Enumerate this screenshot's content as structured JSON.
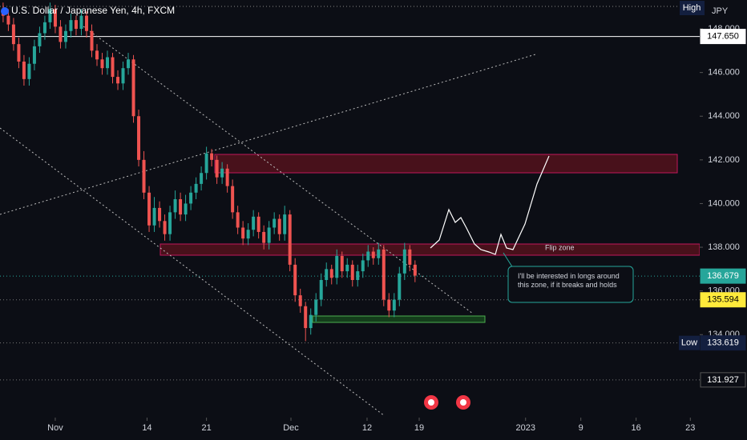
{
  "chart_data": {
    "type": "candlestick",
    "title": "U.S. Dollar / Japanese Yen, 4h, FXCM",
    "currency": "JPY",
    "high_badge": "High",
    "up_color": "#26a69a",
    "down_color": "#ef5350",
    "x": [
      -5,
      -4.5,
      -4,
      -3.5,
      -3,
      -2.5,
      -2,
      -1.5,
      -1,
      -0.5,
      0,
      0.5,
      1,
      1.5,
      2,
      2.5,
      3,
      3.5,
      4,
      4.5,
      5,
      5.5,
      6,
      6.5,
      7,
      7.5,
      8,
      8.5,
      9,
      9.5,
      10,
      10.5,
      11,
      11.5,
      12,
      12.5,
      13,
      13.5,
      14,
      14.5,
      15,
      15.5,
      16,
      16.5,
      17,
      17.5,
      18,
      18.5,
      19,
      19.5,
      20,
      20.5,
      21,
      21.5,
      22,
      22.5,
      23,
      23.5,
      24,
      24.5,
      25,
      25.5,
      26,
      26.5,
      27,
      27.5,
      28,
      28.5,
      29,
      29.5,
      30,
      30.5,
      31,
      31.5,
      32,
      32.5,
      33,
      33.5,
      34,
      34.5
    ],
    "open": [
      148.9,
      148.6,
      148.2,
      147.3,
      146.5,
      145.7,
      146.4,
      147.2,
      147.8,
      148.3,
      148.9,
      148.1,
      147.4,
      147.9,
      148.4,
      148.0,
      148.6,
      147.9,
      147.0,
      146.6,
      146.2,
      146.7,
      145.8,
      145.5,
      146.2,
      146.6,
      144.0,
      142.0,
      140.5,
      139.0,
      139.8,
      139.2,
      138.6,
      139.6,
      140.2,
      139.5,
      140.0,
      140.5,
      140.9,
      141.4,
      142.3,
      142.0,
      141.2,
      141.6,
      140.8,
      139.6,
      138.9,
      138.4,
      138.8,
      139.4,
      138.7,
      138.2,
      138.9,
      139.3,
      138.6,
      139.5,
      137.2,
      135.8,
      135.3,
      134.3,
      134.9,
      135.6,
      136.5,
      137.0,
      136.6,
      137.6,
      136.9,
      137.2,
      136.5,
      136.9,
      137.4,
      137.8,
      137.5,
      137.9,
      135.6,
      135.1,
      135.6,
      136.8,
      137.9,
      137.2
    ],
    "high": [
      149.2,
      148.9,
      148.5,
      147.6,
      146.8,
      146.7,
      147.5,
      148.1,
      148.6,
      149.2,
      149.1,
      148.4,
      148.2,
      148.7,
      148.6,
      148.9,
      148.8,
      148.2,
      147.3,
      146.9,
      147.0,
      146.9,
      146.1,
      146.5,
      146.9,
      146.8,
      144.3,
      142.4,
      140.8,
      140.3,
      140.1,
      139.5,
      139.9,
      140.6,
      140.5,
      140.4,
      140.8,
      141.2,
      141.7,
      142.6,
      142.5,
      142.2,
      141.9,
      141.8,
      141.1,
      139.9,
      139.2,
      139.1,
      139.7,
      139.6,
      139.0,
      139.2,
      139.6,
      139.5,
      139.9,
      139.7,
      137.5,
      136.1,
      135.5,
      135.2,
      135.9,
      136.8,
      137.3,
      137.2,
      137.9,
      137.8,
      137.5,
      137.4,
      137.2,
      137.7,
      138.1,
      138.0,
      138.2,
      138.1,
      135.9,
      135.9,
      137.1,
      138.2,
      138.1,
      137.4
    ],
    "low": [
      148.3,
      147.9,
      147.0,
      146.2,
      145.4,
      145.4,
      146.1,
      146.9,
      147.5,
      148.0,
      147.8,
      147.1,
      147.1,
      147.6,
      147.7,
      147.7,
      147.6,
      146.7,
      146.3,
      145.9,
      145.9,
      145.5,
      145.2,
      145.2,
      145.9,
      143.7,
      141.7,
      140.2,
      138.7,
      138.7,
      138.9,
      138.3,
      138.3,
      139.3,
      139.2,
      139.2,
      139.7,
      140.2,
      140.6,
      141.1,
      141.7,
      140.9,
      140.9,
      140.5,
      139.3,
      138.6,
      138.1,
      138.1,
      138.5,
      138.4,
      137.9,
      137.9,
      138.6,
      138.3,
      138.3,
      136.9,
      135.5,
      135.0,
      133.7,
      134.0,
      134.6,
      135.3,
      136.2,
      136.3,
      136.3,
      136.6,
      136.6,
      136.2,
      136.2,
      136.6,
      137.1,
      137.2,
      137.2,
      135.3,
      134.8,
      134.8,
      135.3,
      136.5,
      136.9,
      136.4
    ],
    "close": [
      148.6,
      148.2,
      147.3,
      146.5,
      145.7,
      146.4,
      147.2,
      147.8,
      148.3,
      148.9,
      148.1,
      147.4,
      147.9,
      148.4,
      148.0,
      148.6,
      147.9,
      147.0,
      146.6,
      146.2,
      146.7,
      145.8,
      145.5,
      146.2,
      146.6,
      144.0,
      142.0,
      140.5,
      139.0,
      139.8,
      139.2,
      138.6,
      139.6,
      140.2,
      139.5,
      140.0,
      140.5,
      140.9,
      141.4,
      142.3,
      142.0,
      141.2,
      141.6,
      140.8,
      139.6,
      138.9,
      138.4,
      138.8,
      139.4,
      138.7,
      138.2,
      138.9,
      139.3,
      138.6,
      139.5,
      137.2,
      135.8,
      135.3,
      134.3,
      134.9,
      135.6,
      136.5,
      137.0,
      136.6,
      137.6,
      136.9,
      137.2,
      136.5,
      136.9,
      137.4,
      137.8,
      137.5,
      137.9,
      135.6,
      135.1,
      135.6,
      136.8,
      137.9,
      137.2,
      136.7
    ],
    "xlim": [
      -5.3,
      61.8
    ],
    "xticks": [
      {
        "value": 0,
        "label": "Nov"
      },
      {
        "value": 8.8,
        "label": "14"
      },
      {
        "value": 14.5,
        "label": "21"
      },
      {
        "value": 22.6,
        "label": "Dec"
      },
      {
        "value": 29.9,
        "label": "12"
      },
      {
        "value": 34.9,
        "label": "19"
      },
      {
        "value": 45.1,
        "label": "2023"
      },
      {
        "value": 50.4,
        "label": "9"
      },
      {
        "value": 55.7,
        "label": "16"
      },
      {
        "value": 60.9,
        "label": "23"
      }
    ],
    "ylim": [
      130.2,
      149.32
    ],
    "yticks": [
      {
        "value": 148,
        "label": "148.000"
      },
      {
        "value": 146,
        "label": "146.000"
      },
      {
        "value": 144,
        "label": "144.000"
      },
      {
        "value": 142,
        "label": "142.000"
      },
      {
        "value": 140,
        "label": "140.000"
      },
      {
        "value": 138,
        "label": "138.000"
      },
      {
        "value": 136,
        "label": "136.000"
      },
      {
        "value": 134,
        "label": "134.000"
      }
    ],
    "levels": [
      {
        "value": 147.65,
        "label": "147.650",
        "color": "#ffffff"
      },
      {
        "value": 136.679,
        "label": "136.679",
        "color": "#26a69a"
      },
      {
        "value": 135.594,
        "label": "135.594",
        "color": "#ffeb3b"
      },
      {
        "value": 133.619,
        "label": "133.619",
        "color": "#131f3f",
        "tag": "Low"
      },
      {
        "value": 131.927,
        "label": "131.927",
        "color": "#0c0e15"
      }
    ],
    "annotations": [
      "Flip zone",
      "I'll be interested in longs around this zone, if it breaks and holds"
    ]
  }
}
